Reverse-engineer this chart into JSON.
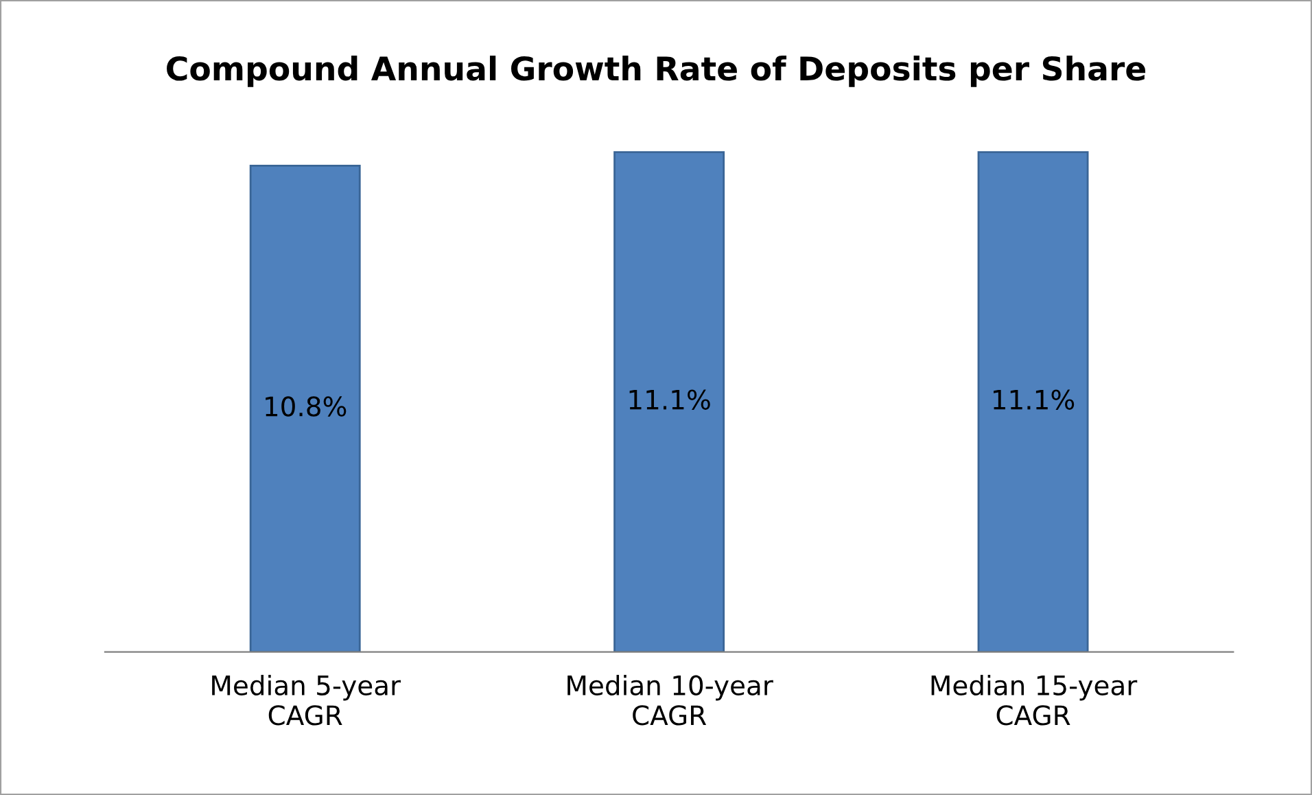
{
  "chart_data": {
    "type": "bar",
    "title": "Compound Annual Growth Rate of Deposits per Share",
    "categories": [
      "Median 5-year\nCAGR",
      "Median 10-year\nCAGR",
      "Median 15-year\nCAGR"
    ],
    "values": [
      10.8,
      11.1,
      11.1
    ],
    "value_labels": [
      "10.8%",
      "11.1%",
      "11.1%"
    ],
    "color": "#4f81bd",
    "grid": false,
    "legend": false
  }
}
